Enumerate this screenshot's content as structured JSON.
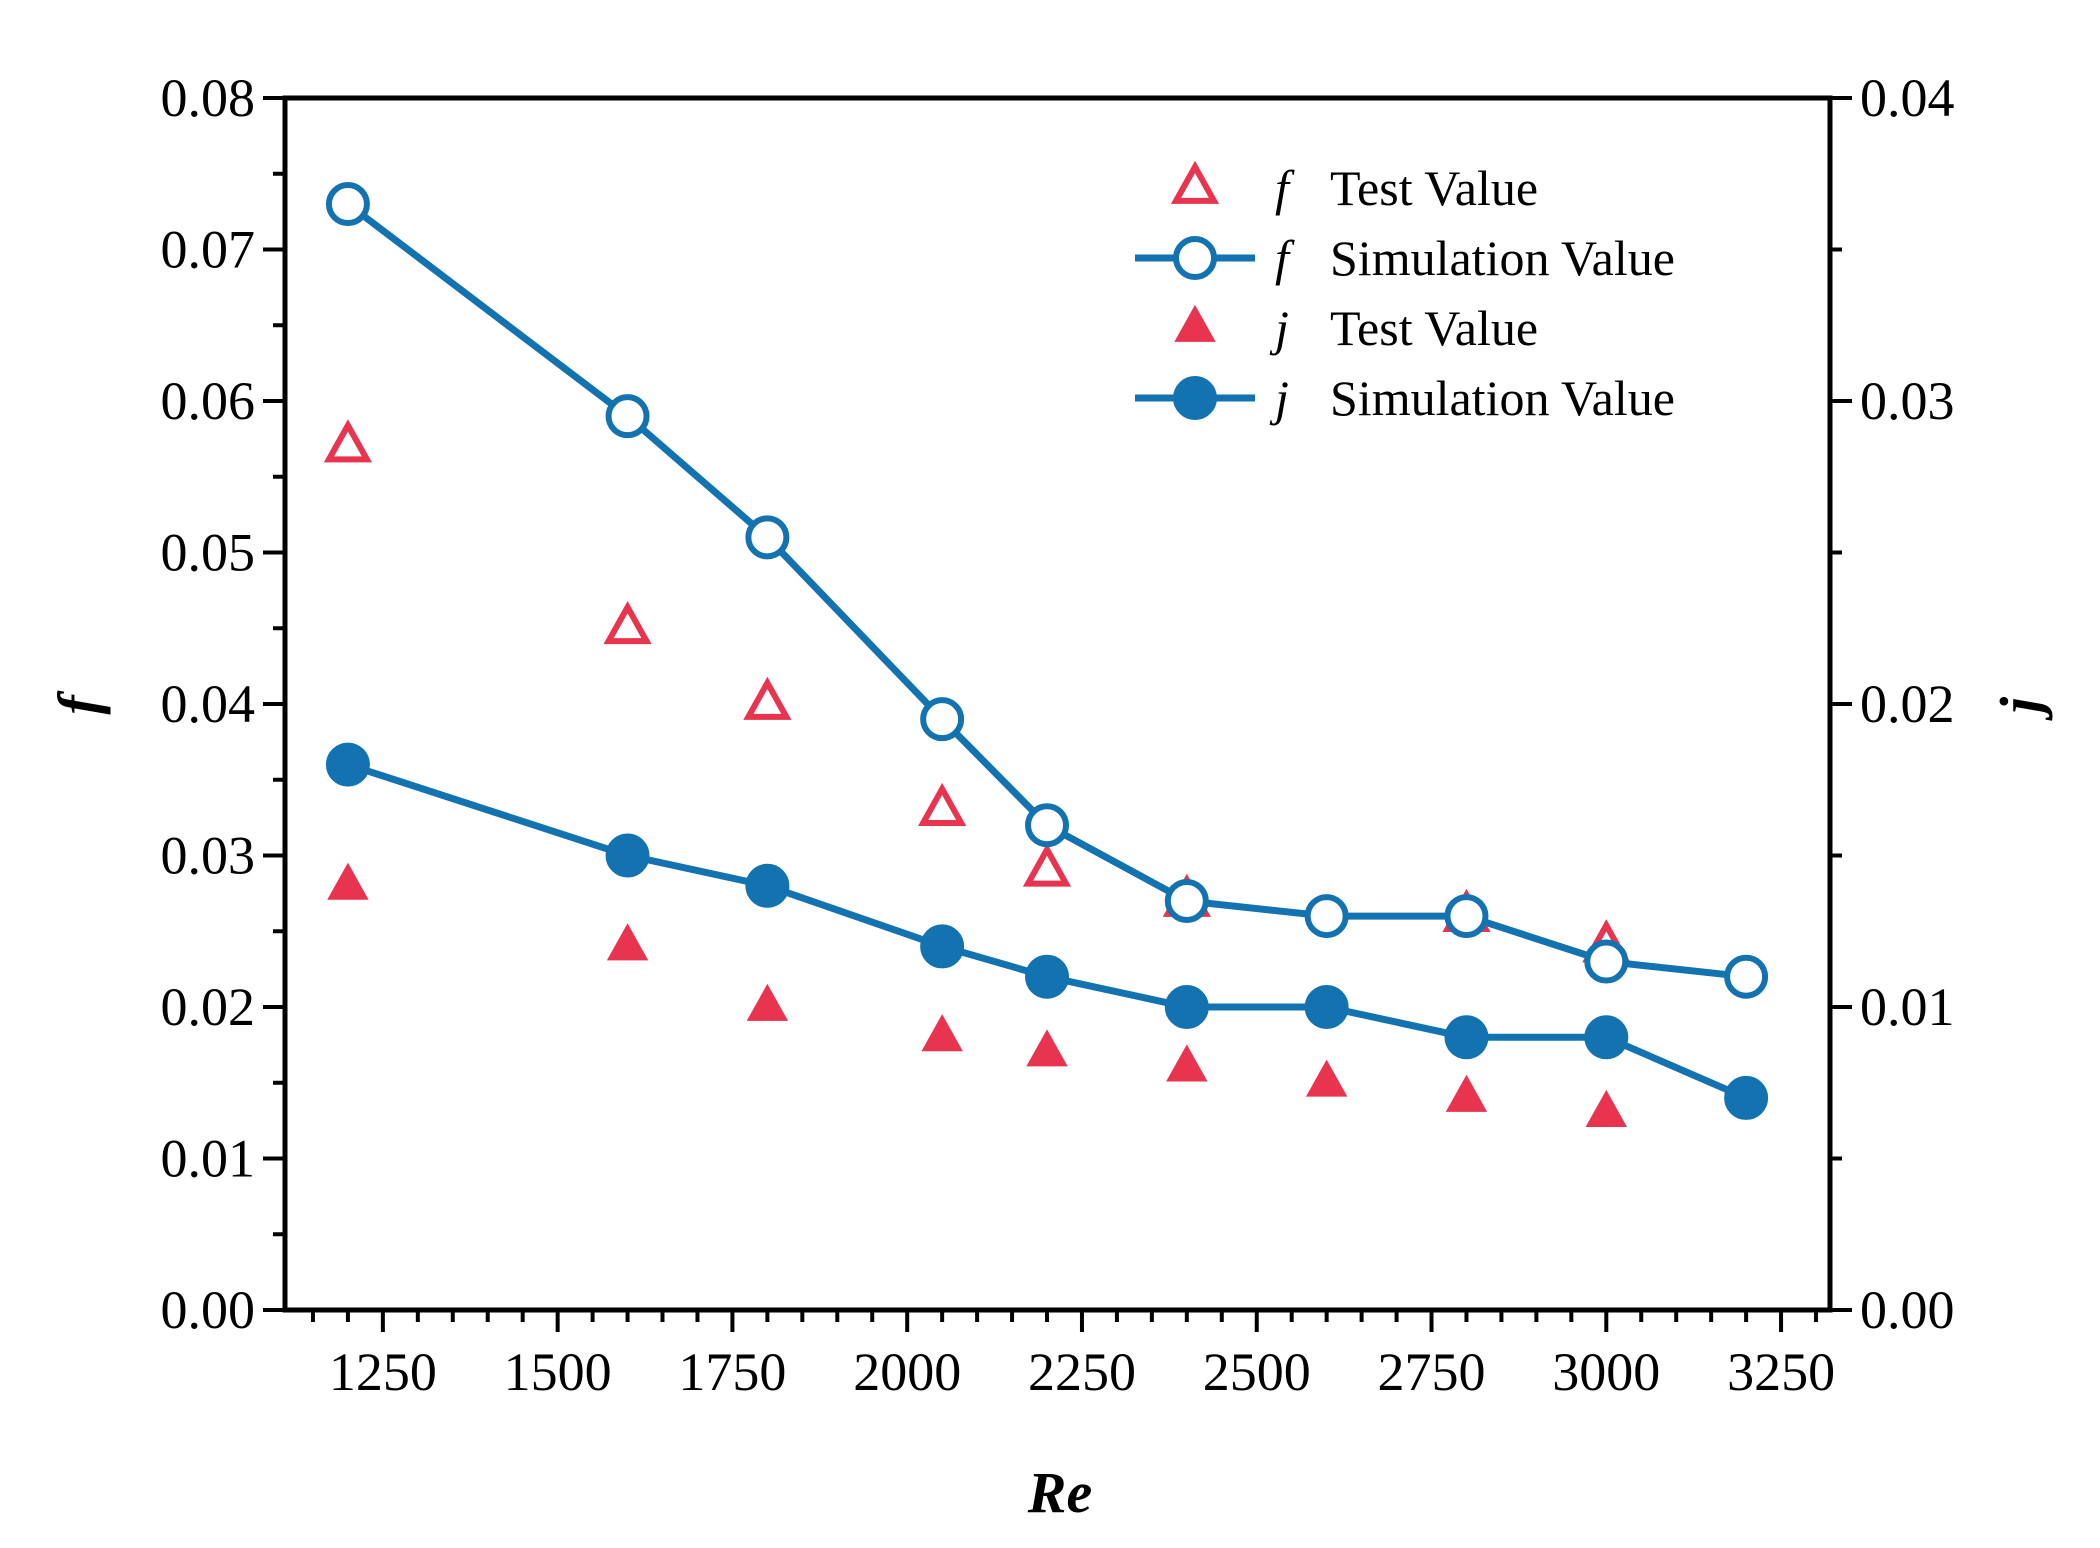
{
  "chart_data": {
    "type": "line",
    "title": "",
    "xlabel": "Re",
    "ylabel_left": "f",
    "ylabel_right": "j",
    "xlim": [
      1110,
      3320
    ],
    "ylim_left": [
      0,
      0.08
    ],
    "ylim_right": [
      0,
      0.04
    ],
    "x_ticks": [
      1250,
      1500,
      1750,
      2000,
      2250,
      2500,
      2750,
      3000,
      3250
    ],
    "x_tick_labels": [
      "1250",
      "1500",
      "1750",
      "2000",
      "2250",
      "2500",
      "2750",
      "3000",
      "3250"
    ],
    "y_left_ticks": [
      0,
      0.01,
      0.02,
      0.03,
      0.04,
      0.05,
      0.06,
      0.07,
      0.08
    ],
    "y_left_tick_labels": [
      "0.00",
      "0.01",
      "0.02",
      "0.03",
      "0.04",
      "0.05",
      "0.06",
      "0.07",
      "0.08"
    ],
    "y_right_ticks": [
      0,
      0.01,
      0.02,
      0.03,
      0.04
    ],
    "y_right_tick_labels": [
      "0.00",
      "0.01",
      "0.02",
      "0.03",
      "0.04"
    ],
    "grid": false,
    "legend_position": "top-right",
    "series": [
      {
        "name": "Test Value",
        "symbol": "f",
        "axis": "left",
        "marker": "triangle-open",
        "line": false,
        "color": "#e8344e",
        "x": [
          1200,
          1600,
          1800,
          2050,
          2200,
          2400,
          2800,
          3000
        ],
        "values": [
          0.057,
          0.045,
          0.04,
          0.033,
          0.029,
          0.027,
          0.026,
          0.024
        ]
      },
      {
        "name": "Simulation Value",
        "symbol": "f",
        "axis": "left",
        "marker": "circle-open",
        "line": true,
        "color": "#1273b0",
        "x": [
          1200,
          1600,
          1800,
          2050,
          2200,
          2400,
          2600,
          2800,
          3000,
          3200
        ],
        "values": [
          0.073,
          0.059,
          0.051,
          0.039,
          0.032,
          0.027,
          0.026,
          0.026,
          0.023,
          0.022
        ]
      },
      {
        "name": "Test Value",
        "symbol": "j",
        "axis": "right",
        "marker": "triangle-filled",
        "line": false,
        "color": "#e8344e",
        "x": [
          1200,
          1600,
          1800,
          2050,
          2200,
          2400,
          2600,
          2800,
          3000
        ],
        "values": [
          0.014,
          0.012,
          0.01,
          0.009,
          0.0085,
          0.008,
          0.0075,
          0.007,
          0.0065
        ]
      },
      {
        "name": "Simulation Value",
        "symbol": "j",
        "axis": "right",
        "marker": "circle-filled",
        "line": true,
        "color": "#1273b0",
        "x": [
          1200,
          1600,
          1800,
          2050,
          2200,
          2400,
          2600,
          2800,
          3000,
          3200
        ],
        "values": [
          0.018,
          0.015,
          0.014,
          0.012,
          0.011,
          0.01,
          0.01,
          0.009,
          0.009,
          0.007
        ]
      }
    ]
  }
}
